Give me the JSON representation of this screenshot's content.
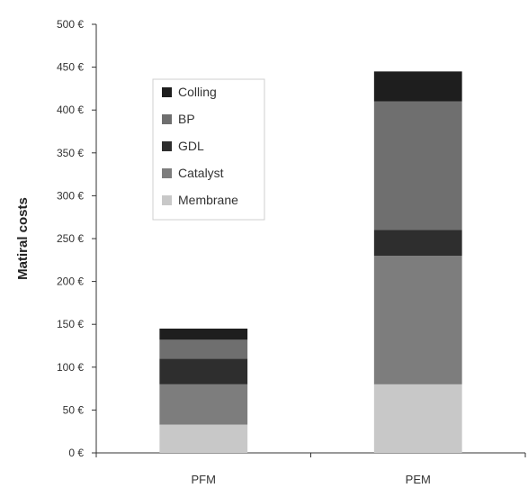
{
  "chart_data": {
    "type": "bar",
    "stacked": true,
    "categories": [
      "PFM",
      "PEM"
    ],
    "series": [
      {
        "name": "Membrane",
        "values": [
          33,
          80
        ],
        "color": "#c8c8c8"
      },
      {
        "name": "Catalyst",
        "values": [
          47,
          150
        ],
        "color": "#7d7d7d"
      },
      {
        "name": "GDL",
        "values": [
          30,
          30
        ],
        "color": "#2e2e2e"
      },
      {
        "name": "BP",
        "values": [
          22,
          150
        ],
        "color": "#6f6f6f"
      },
      {
        "name": "Colling",
        "values": [
          13,
          35
        ],
        "color": "#1e1e1e"
      }
    ],
    "ylabel": "Matiral costs",
    "ylim": [
      0,
      500
    ],
    "yticks": [
      "0 €",
      "50 €",
      "100 €",
      "150 €",
      "200 €",
      "250 €",
      "300 €",
      "350 €",
      "400 €",
      "450 €",
      "500 €"
    ],
    "legend": {
      "placement": "top-left inside",
      "order": [
        "Colling",
        "BP",
        "GDL",
        "Catalyst",
        "Membrane"
      ]
    },
    "grid": false
  }
}
